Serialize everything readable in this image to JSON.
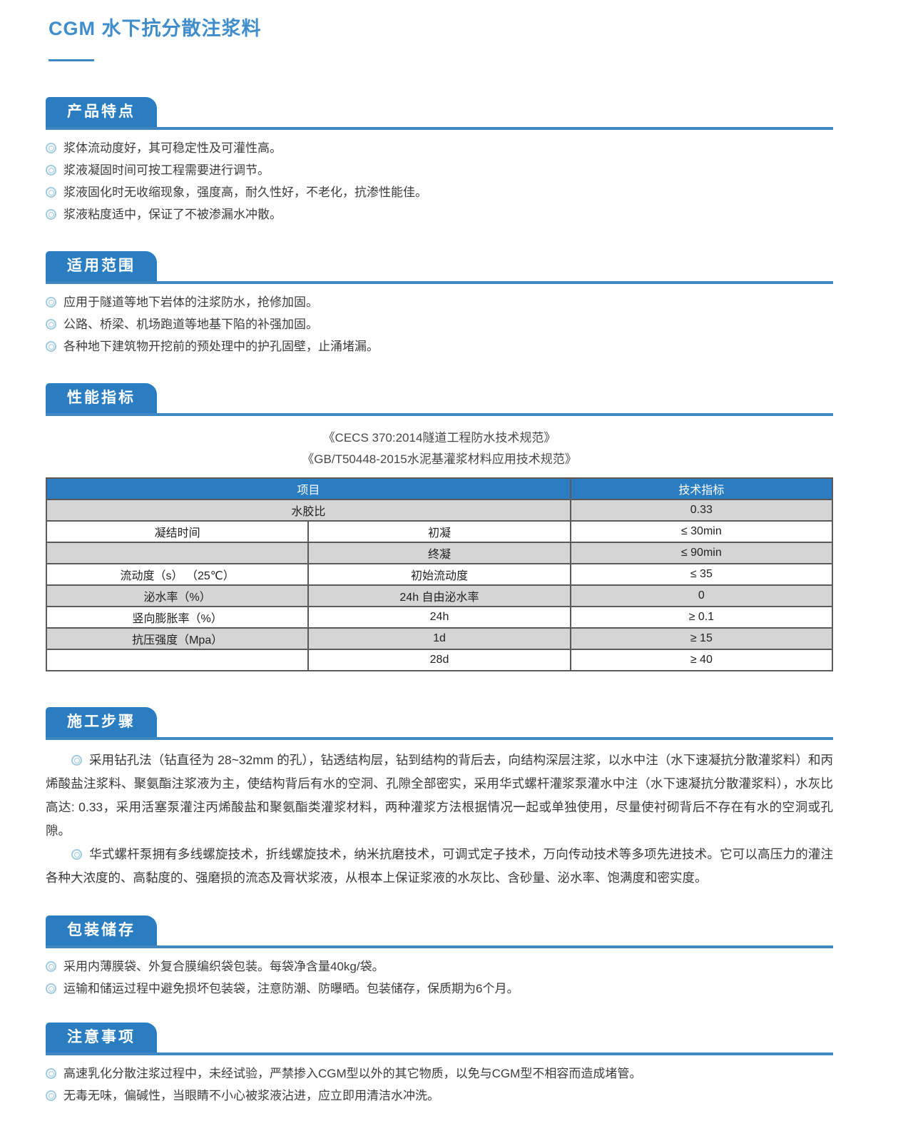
{
  "page": {
    "title": "CGM 水下抗分散注浆料"
  },
  "colors": {
    "accent_blue": "#2a7dc0",
    "rule_blue": "#3f87c3",
    "title_blue": "#3f8dca",
    "row_gray": "#d5d5d5",
    "border_dark": "#5a5a5a",
    "bullet_ring_blue": "#9ecbdf",
    "body_text": "#333333"
  },
  "sections": {
    "features": {
      "heading": "产品特点",
      "bullets": [
        "浆体流动度好，其可稳定性及可灌性高。",
        "浆液凝固时间可按工程需要进行调节。",
        "浆液固化时无收缩现象，强度高，耐久性好，不老化，抗渗性能佳。",
        "浆液粘度适中，保证了不被渗漏水冲散。"
      ]
    },
    "scope": {
      "heading": "适用范围",
      "bullets": [
        "应用于隧道等地下岩体的注浆防水，抢修加固。",
        "公路、桥梁、机场跑道等地基下陷的补强加固。",
        "各种地下建筑物开挖前的预处理中的护孔固壁，止涌堵漏。"
      ]
    },
    "performance": {
      "heading": "性能指标",
      "references": [
        "《CECS 370:2014隧道工程防水技术规范》",
        "《GB/T50448-2015水泥基灌浆材料应用技术规范》"
      ],
      "table": {
        "header": [
          {
            "text": "项目",
            "colspan": 2
          },
          {
            "text": "技术指标",
            "colspan": 1
          }
        ],
        "rows": [
          {
            "shade": "gray",
            "cells": [
              {
                "text": "水胶比",
                "colspan": 2
              },
              {
                "text": "0.33"
              }
            ]
          },
          {
            "shade": "white",
            "cells": [
              {
                "text": "凝结时间"
              },
              {
                "text": "初凝"
              },
              {
                "text": "≤ 30min"
              }
            ]
          },
          {
            "shade": "gray",
            "cells": [
              {
                "text": ""
              },
              {
                "text": "终凝"
              },
              {
                "text": "≤ 90min"
              }
            ]
          },
          {
            "shade": "white",
            "cells": [
              {
                "text": "流动度（s） （25℃）"
              },
              {
                "text": "初始流动度"
              },
              {
                "text": "≤ 35"
              }
            ]
          },
          {
            "shade": "gray",
            "cells": [
              {
                "text": "泌水率（%）"
              },
              {
                "text": "24h 自由泌水率"
              },
              {
                "text": "0"
              }
            ]
          },
          {
            "shade": "white",
            "cells": [
              {
                "text": "竖向膨胀率（%）"
              },
              {
                "text": "24h"
              },
              {
                "text": "≥ 0.1"
              }
            ]
          },
          {
            "shade": "gray",
            "cells": [
              {
                "text": "抗压强度（Mpa）"
              },
              {
                "text": "1d"
              },
              {
                "text": "≥ 15"
              }
            ]
          },
          {
            "shade": "white",
            "cells": [
              {
                "text": ""
              },
              {
                "text": "28d"
              },
              {
                "text": "≥ 40"
              }
            ]
          }
        ]
      }
    },
    "construction": {
      "heading": "施工步骤",
      "paragraphs": [
        "采用钻孔法（钻直径为 28~32mm 的孔），钻透结构层，钻到结构的背后去，向结构深层注浆，以水中注（水下速凝抗分散灌浆料）和丙烯酸盐注浆料、聚氨酯注浆液为主，使结构背后有水的空洞、孔隙全部密实，采用华式螺杆灌浆泵灌水中注（水下速凝抗分散灌浆料），水灰比高达: 0.33，采用活塞泵灌注丙烯酸盐和聚氨酯类灌浆材料，两种灌浆方法根据情况一起或单独使用，尽量使衬砌背后不存在有水的空洞或孔隙。",
        "华式螺杆泵拥有多线螺旋技术，折线螺旋技术，纳米抗磨技术，可调式定子技术，万向传动技术等多项先进技术。它可以高压力的灌注各种大浓度的、高黏度的、强磨损的流态及膏状浆液，从根本上保证浆液的水灰比、含砂量、泌水率、饱满度和密实度。"
      ]
    },
    "packaging": {
      "heading": "包装储存",
      "bullets": [
        "采用内薄膜袋、外复合膜编织袋包装。每袋净含量40kg/袋。",
        "运输和储运过程中避免损坏包装袋，注意防潮、防曝晒。包装储存，保质期为6个月。"
      ]
    },
    "notes": {
      "heading": "注意事项",
      "bullets": [
        "高速乳化分散注浆过程中，未经试验，严禁掺入CGM型以外的其它物质，以免与CGM型不相容而造成堵管。",
        "无毒无味，偏碱性，当眼睛不小心被浆液沾进，应立即用清洁水冲洗。"
      ]
    }
  }
}
